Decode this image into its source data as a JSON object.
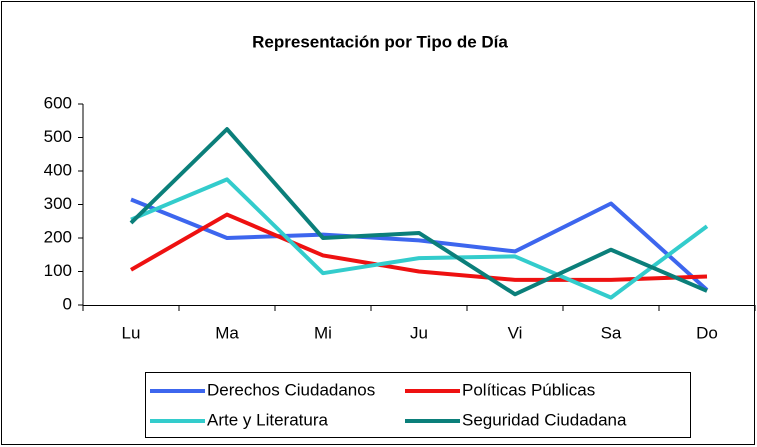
{
  "chart_data": {
    "type": "line",
    "title": "Representación por Tipo de Día",
    "categories": [
      "Lu",
      "Ma",
      "Mi",
      "Ju",
      "Vi",
      "Sa",
      "Do"
    ],
    "series": [
      {
        "name": "Derechos Ciudadanos",
        "color": "#3d66ee",
        "values": [
          315,
          200,
          210,
          193,
          160,
          303,
          45
        ]
      },
      {
        "name": "Políticas Públicas",
        "color": "#ee1111",
        "values": [
          105,
          270,
          148,
          100,
          75,
          75,
          85
        ]
      },
      {
        "name": "Arte y Literatura",
        "color": "#33cccc",
        "values": [
          255,
          375,
          95,
          140,
          145,
          22,
          235
        ]
      },
      {
        "name": "Seguridad Ciudadana",
        "color": "#0b7f7a",
        "values": [
          245,
          525,
          200,
          215,
          32,
          165,
          42
        ]
      }
    ],
    "ylim": [
      0,
      600
    ],
    "yticks": [
      0,
      100,
      200,
      300,
      400,
      500,
      600
    ],
    "grid": false
  }
}
